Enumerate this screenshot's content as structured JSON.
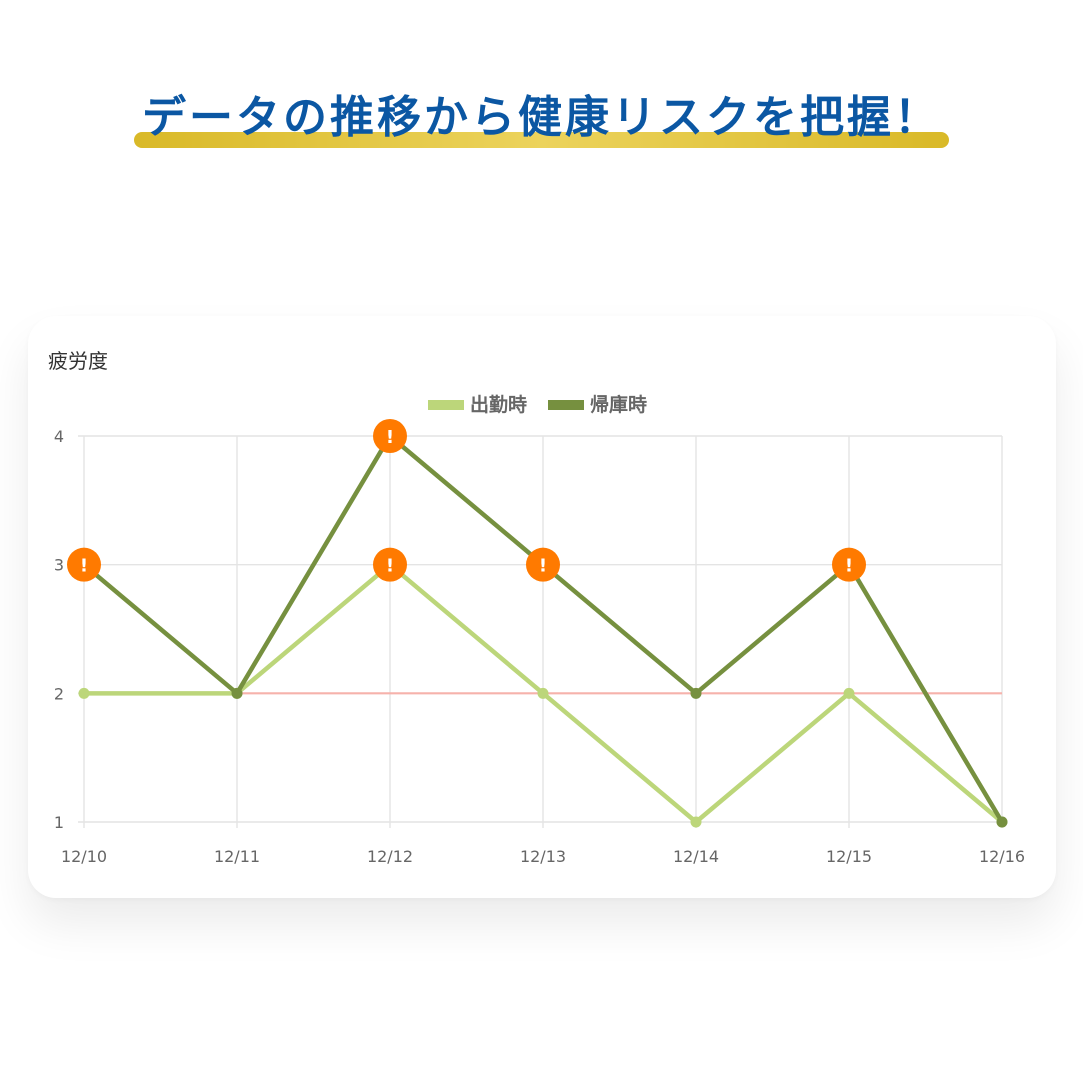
{
  "headline": "データの推移から健康リスクを把握！",
  "colors": {
    "headline_text": "#0b57a3",
    "headline_underline": "#e2c53f",
    "threshold_line": "#f6b2ab",
    "warning_marker": "#ff7a00",
    "grid": "#e4e4e4"
  },
  "chart_data": {
    "type": "line",
    "ylabel": "疲労度",
    "categories": [
      "12/10",
      "12/11",
      "12/12",
      "12/13",
      "12/14",
      "12/15",
      "12/16"
    ],
    "yticks": [
      1,
      2,
      3,
      4
    ],
    "ylim": [
      1,
      4
    ],
    "grid": true,
    "legend_position": "top-center",
    "threshold": 2,
    "series": [
      {
        "name": "出勤時",
        "color": "#bcd67a",
        "values": [
          2,
          2,
          3,
          2,
          1,
          2,
          1
        ],
        "warnings": [
          false,
          false,
          true,
          false,
          false,
          false,
          false
        ]
      },
      {
        "name": "帰庫時",
        "color": "#76903f",
        "values": [
          3,
          2,
          4,
          3,
          2,
          3,
          1
        ],
        "warnings": [
          true,
          false,
          true,
          true,
          false,
          true,
          false
        ]
      }
    ],
    "warning_icon": "exclamation-icon",
    "warning_symbol": "!"
  }
}
